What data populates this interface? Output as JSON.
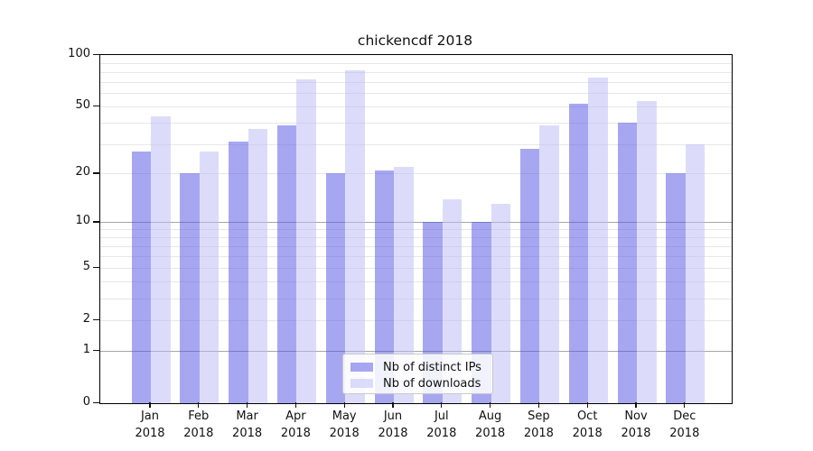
{
  "title": "chickencdf 2018",
  "chart_data": {
    "type": "bar",
    "categories": [
      "Jan",
      "Feb",
      "Mar",
      "Apr",
      "May",
      "Jun",
      "Jul",
      "Aug",
      "Sep",
      "Oct",
      "Nov",
      "Dec"
    ],
    "year": "2018",
    "series": [
      {
        "name": "Nb of distinct IPs",
        "color": "rgba(80,80,228,0.5)",
        "values": [
          27,
          20,
          31,
          39,
          20,
          21,
          10,
          10,
          28,
          52,
          40,
          20
        ]
      },
      {
        "name": "Nb of downloads",
        "color": "rgba(185,185,246,0.5)",
        "values": [
          44,
          27,
          37,
          72,
          81,
          22,
          14,
          13,
          39,
          74,
          54,
          30
        ]
      }
    ],
    "yscale": "log1p",
    "ylim": [
      0,
      100
    ],
    "yticks": [
      0,
      1,
      2,
      5,
      10,
      20,
      50,
      100
    ],
    "grid_major_levels": [
      1,
      10
    ],
    "grid_minor_levels": [
      2,
      3,
      4,
      5,
      6,
      7,
      8,
      9,
      20,
      30,
      40,
      50,
      60,
      70,
      80,
      90
    ],
    "legend_position": "lower center",
    "grid": true
  }
}
